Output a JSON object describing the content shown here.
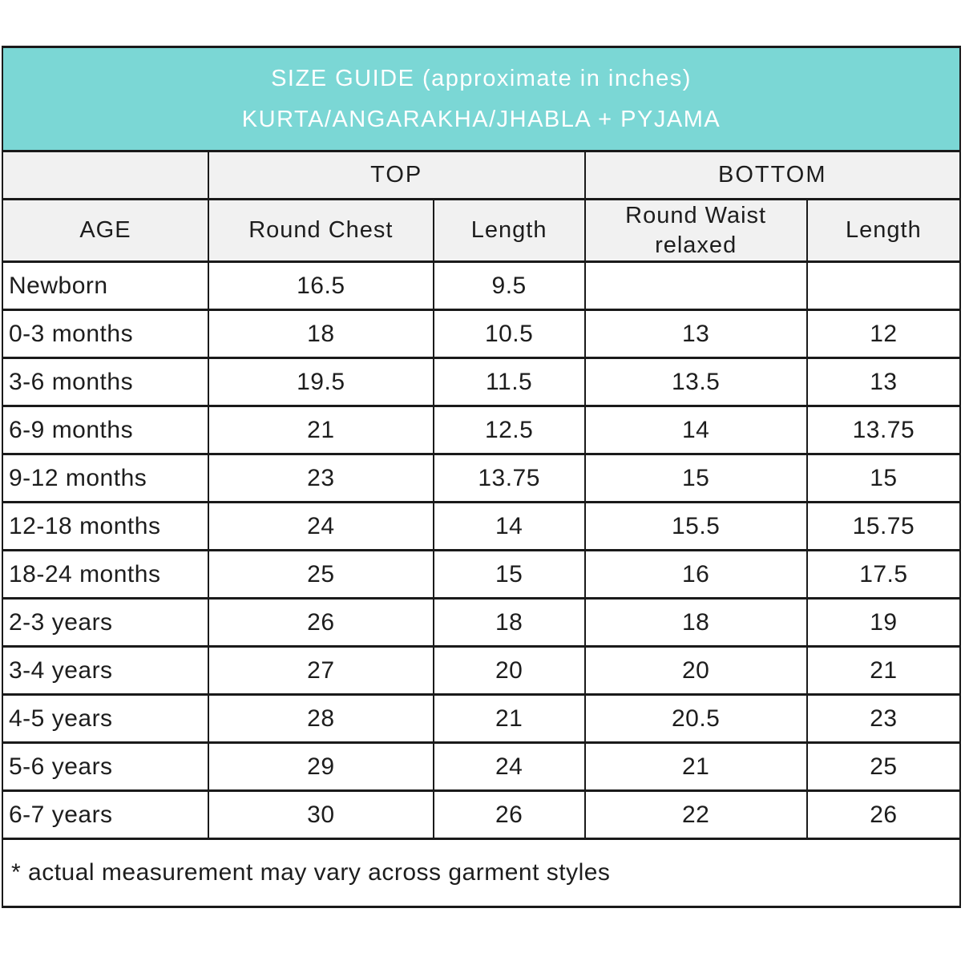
{
  "title": {
    "line1": "SIZE GUIDE (approximate in inches)",
    "line2": "KURTA/ANGARAKHA/JHABLA + PYJAMA"
  },
  "table": {
    "group_headers": {
      "top": "TOP",
      "bottom": "BOTTOM"
    },
    "columns": [
      "AGE",
      "Round Chest",
      "Length",
      "Round Waist relaxed",
      "Length"
    ],
    "rows": [
      [
        "Newborn",
        "16.5",
        "9.5",
        "",
        ""
      ],
      [
        "0-3 months",
        "18",
        "10.5",
        "13",
        "12"
      ],
      [
        "3-6 months",
        "19.5",
        "11.5",
        "13.5",
        "13"
      ],
      [
        "6-9 months",
        "21",
        "12.5",
        "14",
        "13.75"
      ],
      [
        "9-12 months",
        "23",
        "13.75",
        "15",
        "15"
      ],
      [
        "12-18 months",
        "24",
        "14",
        "15.5",
        "15.75"
      ],
      [
        "18-24 months",
        "25",
        "15",
        "16",
        "17.5"
      ],
      [
        "2-3 years",
        "26",
        "18",
        "18",
        "19"
      ],
      [
        "3-4 years",
        "27",
        "20",
        "20",
        "21"
      ],
      [
        "4-5 years",
        "28",
        "21",
        "20.5",
        "23"
      ],
      [
        "5-6 years",
        "29",
        "24",
        "21",
        "25"
      ],
      [
        "6-7 years",
        "30",
        "26",
        "22",
        "26"
      ]
    ]
  },
  "footnote": "* actual measurement may vary across garment styles",
  "colors": {
    "header_bg": "#7bd7d5",
    "header_text": "#ffffff",
    "subheader_bg": "#f1f1f1",
    "border": "#1a1a1a",
    "text": "#1d1d1d"
  },
  "chart_data": {
    "type": "table",
    "title": "SIZE GUIDE (approximate in inches) KURTA/ANGARAKHA/JHABLA + PYJAMA",
    "column_groups": [
      "",
      "TOP",
      "TOP",
      "BOTTOM",
      "BOTTOM"
    ],
    "columns": [
      "AGE",
      "Round Chest",
      "Length",
      "Round Waist relaxed",
      "Length"
    ],
    "rows": [
      [
        "Newborn",
        16.5,
        9.5,
        null,
        null
      ],
      [
        "0-3 months",
        18,
        10.5,
        13,
        12
      ],
      [
        "3-6 months",
        19.5,
        11.5,
        13.5,
        13
      ],
      [
        "6-9 months",
        21,
        12.5,
        14,
        13.75
      ],
      [
        "9-12 months",
        23,
        13.75,
        15,
        15
      ],
      [
        "12-18 months",
        24,
        14,
        15.5,
        15.75
      ],
      [
        "18-24 months",
        25,
        15,
        16,
        17.5
      ],
      [
        "2-3 years",
        26,
        18,
        18,
        19
      ],
      [
        "3-4 years",
        27,
        20,
        20,
        21
      ],
      [
        "4-5 years",
        28,
        21,
        20.5,
        23
      ],
      [
        "5-6 years",
        29,
        24,
        21,
        25
      ],
      [
        "6-7 years",
        30,
        26,
        22,
        26
      ]
    ],
    "annotations": [
      "* actual measurement may vary across garment styles"
    ]
  }
}
